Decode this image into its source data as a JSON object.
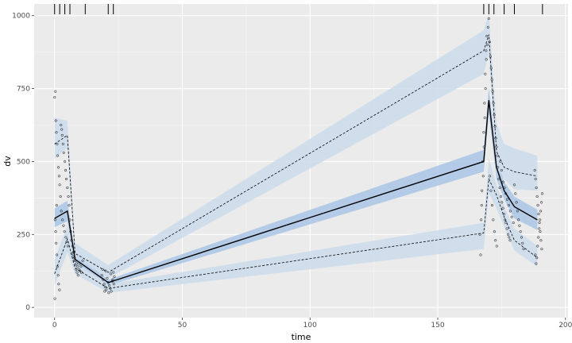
{
  "chart_data": {
    "type": "scatter",
    "title": "",
    "xlabel": "time",
    "ylabel": "dv",
    "xlim": [
      -8,
      201
    ],
    "ylim": [
      -35,
      1040
    ],
    "xticks": [
      0,
      50,
      100,
      150,
      200
    ],
    "yticks": [
      0,
      250,
      500,
      750,
      1000
    ],
    "grid": true,
    "background": "#ebebeb",
    "colors": {
      "outer_band": "#cbdcec",
      "median_band": "#a9c6e5",
      "median_line": "#000000",
      "percentile_line": "#000000",
      "points": "#000000"
    },
    "rug_x": [
      0,
      2,
      4,
      6,
      12,
      21,
      23,
      168,
      170,
      172,
      176,
      180,
      191
    ],
    "bins_x": [
      0,
      5,
      8,
      21,
      168,
      170,
      173,
      176,
      180,
      189
    ],
    "series": [
      {
        "name": "",
        "kind": "median",
        "values": [
          305,
          330,
          165,
          85,
          500,
          710,
          480,
          400,
          345,
          300
        ]
      },
      {
        "name": "",
        "kind": "upper_percentile",
        "values": [
          560,
          590,
          185,
          120,
          880,
          935,
          535,
          480,
          465,
          450
        ]
      },
      {
        "name": "",
        "kind": "lower_percentile",
        "values": [
          115,
          235,
          135,
          65,
          255,
          440,
          385,
          310,
          230,
          170
        ]
      }
    ],
    "bands": [
      {
        "kind": "median_ci",
        "lower": [
          275,
          295,
          150,
          75,
          465,
          665,
          440,
          370,
          305,
          265
        ],
        "upper": [
          340,
          365,
          185,
          95,
          540,
          755,
          520,
          430,
          380,
          335
        ]
      },
      {
        "kind": "upper_ci",
        "lower": [
          510,
          545,
          170,
          100,
          800,
          870,
          480,
          440,
          405,
          400
        ],
        "upper": [
          650,
          640,
          220,
          145,
          950,
          1005,
          630,
          560,
          545,
          520
        ]
      },
      {
        "kind": "lower_ci",
        "lower": [
          75,
          190,
          115,
          50,
          200,
          390,
          340,
          275,
          195,
          140
        ],
        "upper": [
          165,
          280,
          155,
          80,
          290,
          510,
          420,
          345,
          270,
          210
        ]
      }
    ],
    "points": [
      [
        0.0,
        720
      ],
      [
        0.3,
        740
      ],
      [
        0.5,
        640
      ],
      [
        0.7,
        600
      ],
      [
        1.0,
        560
      ],
      [
        1.2,
        520
      ],
      [
        1.5,
        480
      ],
      [
        1.8,
        450
      ],
      [
        2.0,
        420
      ],
      [
        2.3,
        380
      ],
      [
        0.2,
        300
      ],
      [
        0.4,
        260
      ],
      [
        0.6,
        220
      ],
      [
        0.9,
        180
      ],
      [
        1.1,
        140
      ],
      [
        1.4,
        110
      ],
      [
        1.6,
        80
      ],
      [
        1.9,
        60
      ],
      [
        0.1,
        30
      ],
      [
        0.8,
        350
      ],
      [
        2.5,
        625
      ],
      [
        2.8,
        610
      ],
      [
        3.0,
        590
      ],
      [
        3.3,
        560
      ],
      [
        3.6,
        530
      ],
      [
        4.0,
        500
      ],
      [
        4.3,
        470
      ],
      [
        4.6,
        440
      ],
      [
        5.0,
        410
      ],
      [
        5.4,
        380
      ],
      [
        2.6,
        330
      ],
      [
        3.1,
        300
      ],
      [
        3.5,
        280
      ],
      [
        3.9,
        260
      ],
      [
        4.4,
        240
      ],
      [
        4.8,
        225
      ],
      [
        5.2,
        210
      ],
      [
        5.7,
        350
      ],
      [
        6.0,
        300
      ],
      [
        6.3,
        260
      ],
      [
        6.6,
        230
      ],
      [
        7.0,
        210
      ],
      [
        7.4,
        190
      ],
      [
        7.8,
        170
      ],
      [
        8.2,
        160
      ],
      [
        8.6,
        150
      ],
      [
        9.0,
        140
      ],
      [
        9.5,
        130
      ],
      [
        10.0,
        125
      ],
      [
        10.5,
        120
      ],
      [
        6.8,
        185
      ],
      [
        7.2,
        175
      ],
      [
        7.6,
        160
      ],
      [
        8.0,
        145
      ],
      [
        8.4,
        130
      ],
      [
        8.8,
        120
      ],
      [
        9.2,
        110
      ],
      [
        9.8,
        150
      ],
      [
        10.3,
        140
      ],
      [
        11.0,
        160
      ],
      [
        18.5,
        110
      ],
      [
        19.0,
        95
      ],
      [
        19.4,
        80
      ],
      [
        19.8,
        70
      ],
      [
        20.2,
        60
      ],
      [
        20.6,
        100
      ],
      [
        21.0,
        85
      ],
      [
        21.4,
        75
      ],
      [
        21.8,
        65
      ],
      [
        22.2,
        55
      ],
      [
        22.6,
        90
      ],
      [
        23.0,
        120
      ],
      [
        23.4,
        105
      ],
      [
        18.8,
        130
      ],
      [
        20.0,
        125
      ],
      [
        22.0,
        115
      ],
      [
        23.2,
        80
      ],
      [
        19.6,
        55
      ],
      [
        21.2,
        50
      ],
      [
        22.8,
        95
      ],
      [
        166.5,
        250
      ],
      [
        166.8,
        180
      ],
      [
        167.0,
        300
      ],
      [
        167.3,
        400
      ],
      [
        167.6,
        500
      ],
      [
        168.0,
        600
      ],
      [
        168.3,
        700
      ],
      [
        168.6,
        800
      ],
      [
        168.9,
        880
      ],
      [
        169.2,
        930
      ],
      [
        167.2,
        350
      ],
      [
        167.8,
        450
      ],
      [
        168.1,
        550
      ],
      [
        168.4,
        650
      ],
      [
        168.7,
        750
      ],
      [
        169.0,
        850
      ],
      [
        169.4,
        900
      ],
      [
        169.7,
        960
      ],
      [
        170.0,
        990
      ],
      [
        170.3,
        910
      ],
      [
        170.6,
        860
      ],
      [
        170.9,
        820
      ],
      [
        171.2,
        780
      ],
      [
        171.5,
        740
      ],
      [
        171.8,
        700
      ],
      [
        172.1,
        660
      ],
      [
        172.4,
        620
      ],
      [
        172.7,
        580
      ],
      [
        173.0,
        550
      ],
      [
        173.3,
        520
      ],
      [
        170.4,
        450
      ],
      [
        170.8,
        400
      ],
      [
        171.3,
        350
      ],
      [
        171.7,
        300
      ],
      [
        172.2,
        260
      ],
      [
        172.6,
        230
      ],
      [
        173.1,
        210
      ],
      [
        173.5,
        480
      ],
      [
        173.9,
        440
      ],
      [
        174.3,
        410
      ],
      [
        174.7,
        380
      ],
      [
        175.1,
        360
      ],
      [
        175.5,
        340
      ],
      [
        175.9,
        320
      ],
      [
        176.3,
        300
      ],
      [
        176.7,
        290
      ],
      [
        177.1,
        270
      ],
      [
        177.5,
        250
      ],
      [
        177.9,
        240
      ],
      [
        178.3,
        230
      ],
      [
        174.5,
        500
      ],
      [
        175.0,
        470
      ],
      [
        175.6,
        430
      ],
      [
        176.1,
        410
      ],
      [
        176.6,
        390
      ],
      [
        177.2,
        370
      ],
      [
        177.8,
        350
      ],
      [
        178.4,
        330
      ],
      [
        179.0,
        310
      ],
      [
        179.6,
        290
      ],
      [
        180.0,
        420
      ],
      [
        180.4,
        390
      ],
      [
        180.8,
        360
      ],
      [
        181.2,
        330
      ],
      [
        181.6,
        300
      ],
      [
        182.0,
        280
      ],
      [
        182.4,
        260
      ],
      [
        182.8,
        240
      ],
      [
        183.2,
        220
      ],
      [
        183.6,
        200
      ],
      [
        188.0,
        470
      ],
      [
        188.3,
        440
      ],
      [
        188.6,
        410
      ],
      [
        188.9,
        380
      ],
      [
        189.2,
        350
      ],
      [
        189.5,
        320
      ],
      [
        189.8,
        290
      ],
      [
        190.1,
        260
      ],
      [
        190.4,
        230
      ],
      [
        190.7,
        200
      ],
      [
        188.2,
        180
      ],
      [
        188.5,
        150
      ],
      [
        188.8,
        170
      ],
      [
        189.1,
        210
      ],
      [
        189.4,
        240
      ],
      [
        189.7,
        270
      ],
      [
        190.0,
        300
      ],
      [
        190.3,
        330
      ],
      [
        190.6,
        360
      ],
      [
        190.9,
        390
      ]
    ]
  }
}
